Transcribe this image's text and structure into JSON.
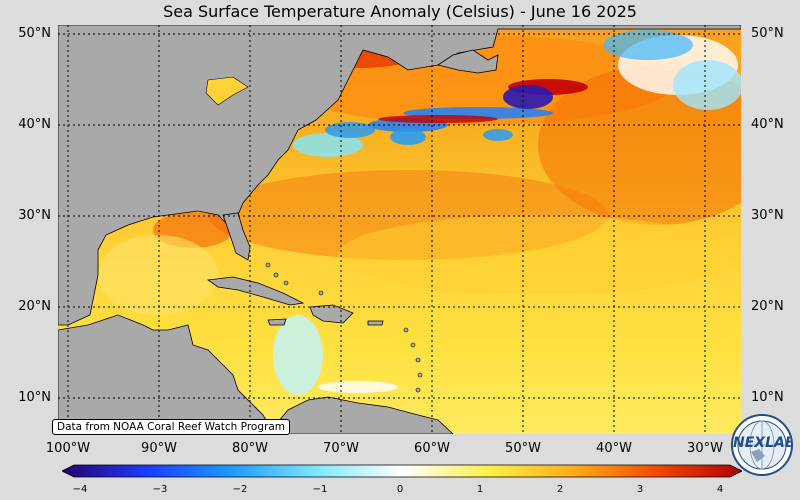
{
  "title": "Sea Surface Temperature Anomaly (Celsius) - June 16 2025",
  "lat_labels": [
    "50°N",
    "40°N",
    "30°N",
    "20°N",
    "10°N"
  ],
  "lon_labels": [
    "100°W",
    "90°W",
    "80°W",
    "70°W",
    "60°W",
    "50°W",
    "40°W",
    "30°W"
  ],
  "credit": "Data from NOAA Coral Reef Watch Program",
  "colorbar": {
    "ticks": [
      "−4",
      "−3",
      "−2",
      "−1",
      "0",
      "1",
      "2",
      "3",
      "4"
    ],
    "colors": [
      "#2a006e",
      "#1a3cff",
      "#1e9bff",
      "#7fe7ff",
      "#ffffff",
      "#fff04a",
      "#ffae1a",
      "#f04a00",
      "#b00000"
    ]
  },
  "logo": {
    "text": "NEXLAB",
    "icon": "nexlab-globe-icon"
  },
  "colors": {
    "land": "#a9a9a9",
    "background": "#dcdcdc"
  }
}
